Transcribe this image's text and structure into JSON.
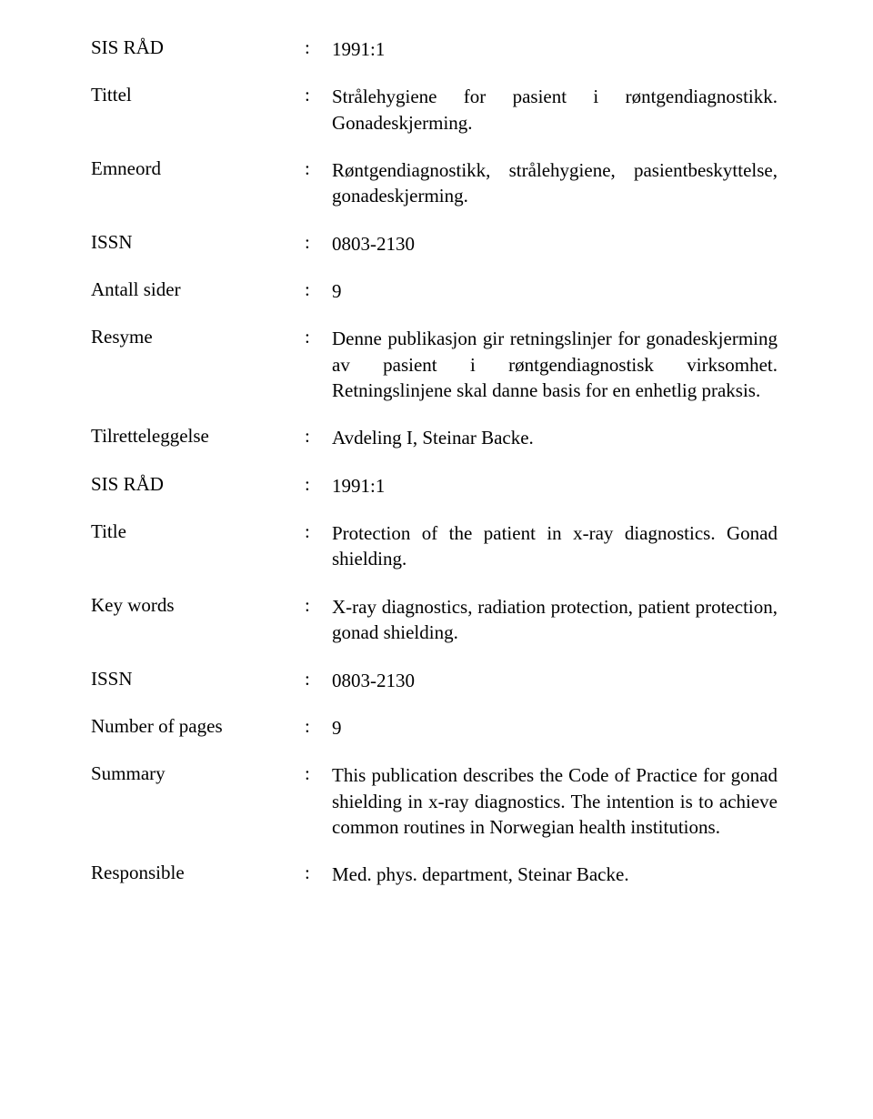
{
  "rows": [
    {
      "label": "SIS RÅD",
      "value": "1991:1"
    },
    {
      "label": "Tittel",
      "value": "Strålehygiene for pasient i røntgendiagnostikk. Gonadeskjerming."
    },
    {
      "label": "Emneord",
      "value": "Røntgendiagnostikk, strålehygiene, pasientbeskyttelse, gonadeskjerming."
    },
    {
      "label": "ISSN",
      "value": "0803-2130"
    },
    {
      "label": "Antall sider",
      "value": "9"
    },
    {
      "label": "Resyme",
      "value": "Denne publikasjon gir retningslinjer for gonadeskjerming av pasient i røntgendiagnostisk virksomhet. Retningslinjene skal danne basis for en enhetlig praksis."
    },
    {
      "label": "Tilretteleggelse",
      "value": "Avdeling I, Steinar Backe."
    },
    {
      "label": "SIS RÅD",
      "value": "1991:1"
    },
    {
      "label": "Title",
      "value": "Protection of the patient in x-ray diagnostics. Gonad shielding."
    },
    {
      "label": "Key words",
      "value": "X-ray diagnostics, radiation protection, patient protection, gonad shielding."
    },
    {
      "label": "ISSN",
      "value": "0803-2130"
    },
    {
      "label": "Number of pages",
      "value": "9"
    },
    {
      "label": "Summary",
      "value": "This publication describes the Code of Practice for gonad shielding in x-ray diagnostics. The intention is to achieve common routines in Norwegian health institutions."
    },
    {
      "label": "Responsible",
      "value": "Med. phys. department, Steinar Backe."
    }
  ],
  "styling": {
    "background_color": "#ffffff",
    "text_color": "#000000",
    "font_family": "Times New Roman",
    "label_fontsize": 21,
    "value_fontsize": 21,
    "label_col_width": 235,
    "colon_col_width": 30,
    "row_spacing": 24
  }
}
